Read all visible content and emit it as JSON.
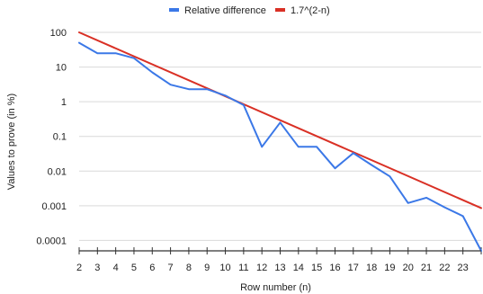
{
  "chart_data": {
    "type": "line",
    "title": "",
    "xlabel": "Row number (n)",
    "ylabel": "Values to prove (in %)",
    "y_scale": "log",
    "ylim": [
      5e-05,
      100
    ],
    "xlim": [
      2,
      24
    ],
    "grid": true,
    "legend_position": "top",
    "y_ticks": [
      100,
      10,
      1,
      0.1,
      0.01,
      0.001,
      0.0001
    ],
    "y_tick_labels": [
      "100",
      "10",
      "1",
      "0.1",
      "0.01",
      "0.001",
      "0.0001"
    ],
    "x_ticks": [
      2,
      3,
      4,
      5,
      6,
      7,
      8,
      9,
      10,
      11,
      12,
      13,
      14,
      15,
      16,
      17,
      18,
      19,
      20,
      21,
      22,
      23
    ],
    "x_tick_labels": [
      "2",
      "3",
      "4",
      "5",
      "6",
      "7",
      "8",
      "9",
      "10",
      "11",
      "12",
      "13",
      "14",
      "15",
      "16",
      "17",
      "18",
      "19",
      "20",
      "21",
      "22",
      "23"
    ],
    "series": [
      {
        "name": "Relative difference",
        "color": "#3b78e7",
        "x": [
          2,
          3,
          4,
          5,
          6,
          7,
          8,
          9,
          10,
          11,
          12,
          13,
          14,
          15,
          16,
          17,
          18,
          19,
          20,
          21,
          22,
          23,
          24
        ],
        "y": [
          50,
          25,
          25,
          18,
          7,
          3.1,
          2.3,
          2.3,
          1.5,
          0.8,
          0.05,
          0.25,
          0.05,
          0.05,
          0.012,
          0.033,
          0.015,
          0.007,
          0.0012,
          0.0017,
          0.0009,
          0.0005,
          5e-05
        ]
      },
      {
        "name": "1.7^(2-n)",
        "color": "#d93025",
        "x": [
          2,
          24
        ],
        "y": [
          100,
          0.00086
        ]
      }
    ]
  }
}
